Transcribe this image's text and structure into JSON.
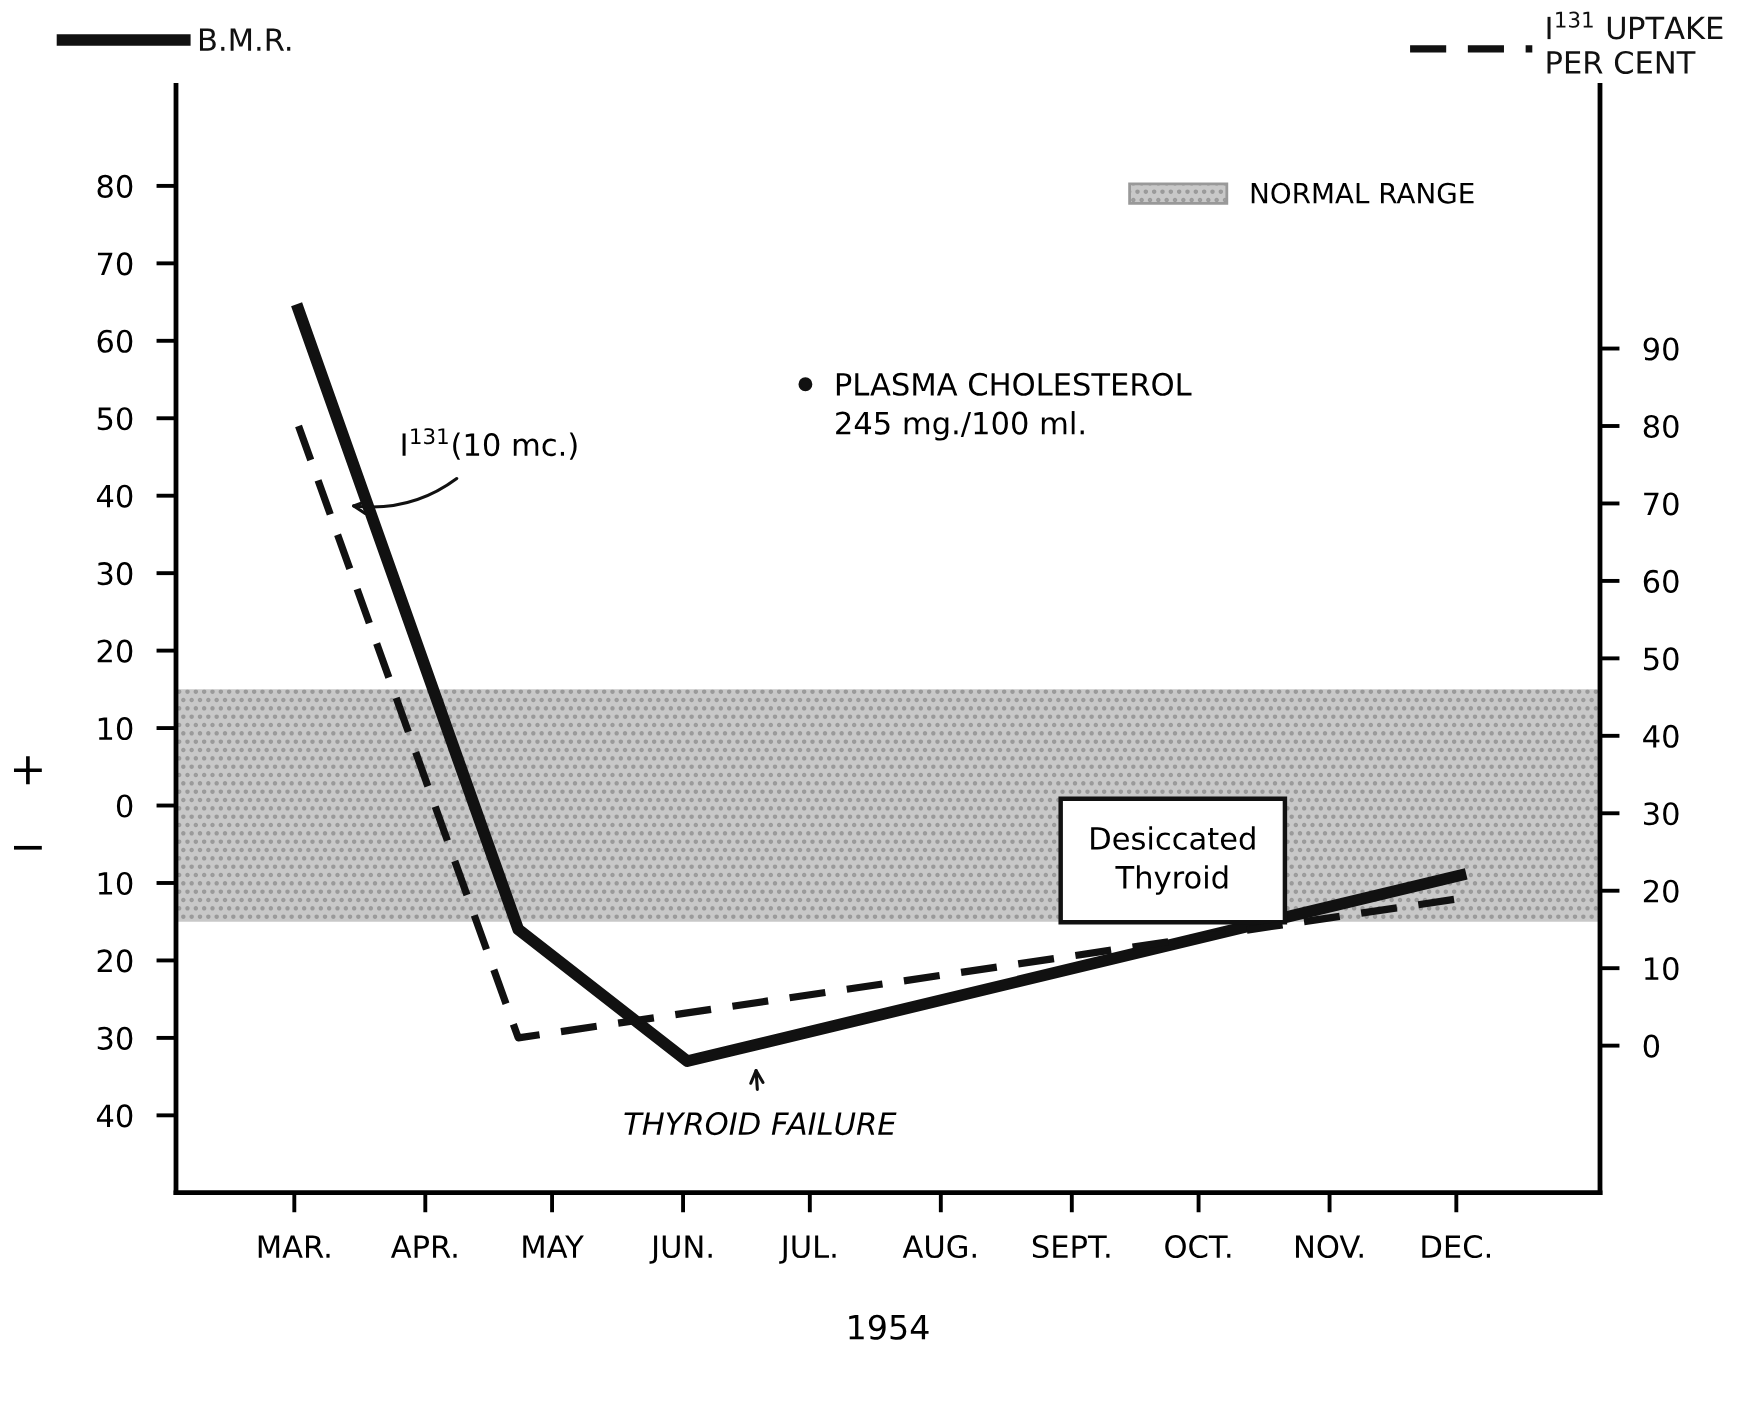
{
  "chart_data": {
    "type": "line",
    "xlabel": "1954",
    "series": [
      {
        "name": "B.M.R.",
        "color": "#111111",
        "line_style": "solid",
        "x": [
          "1954-03-02",
          "1954-04-23",
          "1954-06-02",
          "1954-12-02"
        ],
        "values": [
          64,
          -16,
          -33,
          -9
        ]
      },
      {
        "name": "I$^{131}$ UPTAKE\nPER CENT",
        "color": "#111111",
        "line_style": "dashed",
        "axis": "y2",
        "x": [
          "1954-03-02",
          "1954-04-23",
          "1954-12-02"
        ],
        "values": [
          80,
          1,
          19
        ]
      }
    ],
    "xlim": [
      "1954-02-01",
      "1955-01-04"
    ],
    "xticks": [
      {
        "value": "1954-03-01",
        "label": "MAR."
      },
      {
        "value": "1954-04-01",
        "label": "APR."
      },
      {
        "value": "1954-05-01",
        "label": "MAY"
      },
      {
        "value": "1954-06-01",
        "label": "JUN."
      },
      {
        "value": "1954-07-01",
        "label": "JUL."
      },
      {
        "value": "1954-08-01",
        "label": "AUG."
      },
      {
        "value": "1954-09-01",
        "label": "SEPT."
      },
      {
        "value": "1954-10-01",
        "label": "OCT."
      },
      {
        "value": "1954-11-01",
        "label": "NOV."
      },
      {
        "value": "1954-12-01",
        "label": "DEC."
      }
    ],
    "ylim": [
      -50,
      93
    ],
    "yticks": [
      {
        "value": -40,
        "label": "40"
      },
      {
        "value": -30,
        "label": "30"
      },
      {
        "value": -20,
        "label": "20"
      },
      {
        "value": -10,
        "label": "10"
      },
      0,
      10,
      20,
      30,
      40,
      50,
      60,
      70,
      80
    ],
    "y2lim": [
      -19,
      124
    ],
    "y2ticks": [
      0,
      10,
      20,
      30,
      40,
      50,
      60,
      70,
      80,
      90
    ],
    "bands": [
      {
        "axis": "y",
        "from": -15,
        "to": 15,
        "label": "NORMAL RANGE",
        "color": "#c8c8c8"
      }
    ],
    "annotations": [
      {
        "text": "I$^{131}$(10 mc.)",
        "x": "1954-03-11",
        "y": 39
      },
      {
        "text": "THYROID FAILURE",
        "x": "1954-06-18",
        "y": -32
      },
      "PLASMA CHOLESTEROL\n245 mg./100 ml.",
      "Desiccated\nThyroid",
      "+",
      "−"
    ],
    "legend": "top",
    "grid": false,
    "marker": "none"
  }
}
